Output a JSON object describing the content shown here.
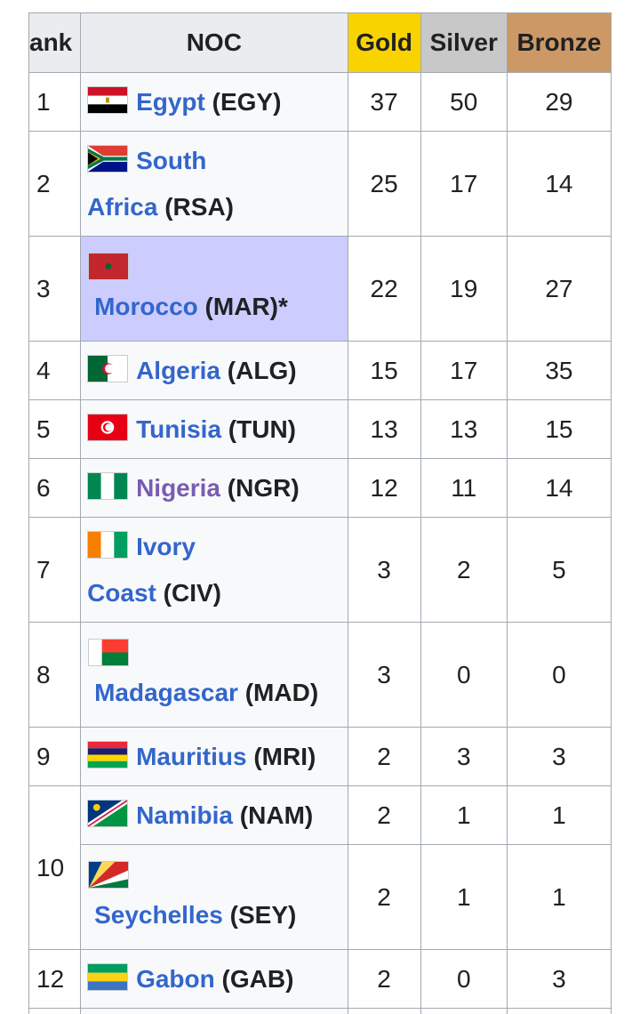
{
  "headers": {
    "rank": "ank",
    "noc": "NOC",
    "gold": "Gold",
    "silver": "Silver",
    "bronze": "Bronze"
  },
  "rows": [
    {
      "rank": "1",
      "name": "Egypt",
      "code": "(EGY)",
      "gold": "37",
      "silver": "50",
      "bronze": "29",
      "flag": "egypt-flag-icon"
    },
    {
      "rank": "2",
      "name_part1": "South",
      "name_part2": "Africa",
      "code": "(RSA)",
      "gold": "25",
      "silver": "17",
      "bronze": "14",
      "flag": "south-africa-flag-icon"
    },
    {
      "rank": "3",
      "name": "Morocco",
      "code": "(MAR)*",
      "gold": "22",
      "silver": "19",
      "bronze": "27",
      "flag": "morocco-flag-icon",
      "host": true
    },
    {
      "rank": "4",
      "name": "Algeria",
      "code": "(ALG)",
      "gold": "15",
      "silver": "17",
      "bronze": "35",
      "flag": "algeria-flag-icon"
    },
    {
      "rank": "5",
      "name": "Tunisia",
      "code": "(TUN)",
      "gold": "13",
      "silver": "13",
      "bronze": "15",
      "flag": "tunisia-flag-icon"
    },
    {
      "rank": "6",
      "name": "Nigeria",
      "code": "(NGR)",
      "gold": "12",
      "silver": "11",
      "bronze": "14",
      "flag": "nigeria-flag-icon"
    },
    {
      "rank": "7",
      "name_part1": "Ivory",
      "name_part2": "Coast",
      "code": "(CIV)",
      "gold": "3",
      "silver": "2",
      "bronze": "5",
      "flag": "ivory-coast-flag-icon"
    },
    {
      "rank": "8",
      "name": "Madagascar",
      "code": "(MAD)",
      "gold": "3",
      "silver": "0",
      "bronze": "0",
      "flag": "madagascar-flag-icon"
    },
    {
      "rank": "9",
      "name": "Mauritius",
      "code": "(MRI)",
      "gold": "2",
      "silver": "3",
      "bronze": "3",
      "flag": "mauritius-flag-icon"
    },
    {
      "rank": "10",
      "name": "Namibia",
      "code": "(NAM)",
      "gold": "2",
      "silver": "1",
      "bronze": "1",
      "flag": "namibia-flag-icon"
    },
    {
      "rank": "",
      "name": "Seychelles",
      "code": "(SEY)",
      "gold": "2",
      "silver": "1",
      "bronze": "1",
      "flag": "seychelles-flag-icon"
    },
    {
      "rank": "12",
      "name": "Gabon",
      "code": "(GAB)",
      "gold": "2",
      "silver": "0",
      "bronze": "3",
      "flag": "gabon-flag-icon"
    }
  ],
  "colors": {
    "link": "#3366cc",
    "visited_link": "#795cb2",
    "gold": "#f9d300",
    "silver": "#c8c8c8",
    "bronze": "#cc9966",
    "host": "#ccccff"
  }
}
